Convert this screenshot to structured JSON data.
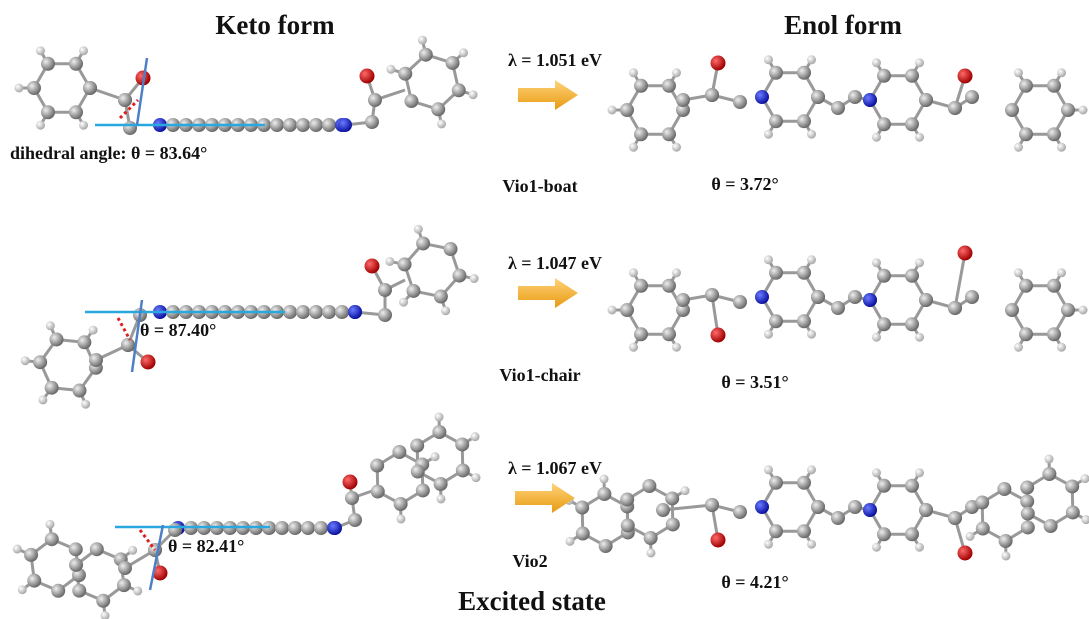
{
  "header": {
    "left": "Keto form",
    "right": "Enol form"
  },
  "rows": [
    {
      "lambda": "λ = 1.051 eV",
      "keto_angle": "dihedral angle: θ = 83.64°",
      "name": "Vio1-boat",
      "enol_angle": "θ = 3.72°"
    },
    {
      "lambda": "λ = 1.047 eV",
      "keto_angle": "θ = 87.40°",
      "name": "Vio1-chair",
      "enol_angle": "θ = 3.51°"
    },
    {
      "lambda": "λ = 1.067 eV",
      "keto_angle": "θ = 82.41°",
      "name": "Vio2",
      "enol_angle": "θ = 4.21°"
    }
  ],
  "footer": "Excited state"
}
